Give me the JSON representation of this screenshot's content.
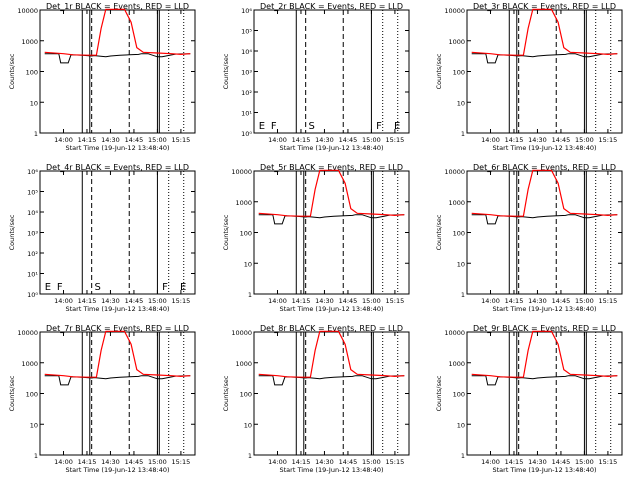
{
  "chart_data": [
    {
      "type": "line",
      "title": "Det_1r BLACK = Events, RED = LLD",
      "ylabel": "Counts/sec",
      "xlabel": "Start Time (19-Jun-12 13:48:40)",
      "xticks": [
        "14:00",
        "14:15",
        "14:30",
        "14:45",
        "15:00",
        "15:15"
      ],
      "yscale": "log",
      "ylim": [
        1,
        10000
      ],
      "yticks": [
        "1",
        "10",
        "100",
        "1000",
        "10000"
      ],
      "markers": [],
      "series": [
        {
          "color": "#000000",
          "x": [
            13.8,
            13.95,
            13.97,
            14.05,
            14.08,
            14.2,
            14.3,
            14.33,
            14.45,
            14.5,
            14.6,
            14.8,
            14.83,
            14.9,
            15.0,
            15.05,
            15.2,
            15.35
          ],
          "y": [
            380,
            380,
            190,
            190,
            350,
            340,
            320,
            330,
            300,
            320,
            340,
            360,
            380,
            380,
            300,
            300,
            370,
            380
          ]
        },
        {
          "color": "#ff0000",
          "x": [
            13.8,
            14.0,
            14.1,
            14.25,
            14.35,
            14.4,
            14.45,
            14.55,
            14.65,
            14.72,
            14.78,
            14.85,
            15.0,
            15.15,
            15.25,
            15.35
          ],
          "y": [
            420,
            380,
            350,
            340,
            340,
            2500,
            10500,
            10500,
            10500,
            4000,
            600,
            420,
            400,
            380,
            360,
            380
          ]
        }
      ],
      "vlines": [
        {
          "x": 14.2,
          "style": "solid"
        },
        {
          "x": 14.28,
          "style": "solid"
        },
        {
          "x": 14.3,
          "style": "dashed"
        },
        {
          "x": 14.7,
          "style": "dashed"
        },
        {
          "x": 15.0,
          "style": "solid"
        },
        {
          "x": 15.02,
          "style": "solid"
        },
        {
          "x": 15.12,
          "style": "dotted"
        },
        {
          "x": 15.28,
          "style": "dotted"
        }
      ]
    },
    {
      "type": "line",
      "title": "Det_2r BLACK = Events, RED = LLD",
      "ylabel": "Counts/sec",
      "xlabel": "Start Time (19-Jun-12 13:48:40)",
      "xticks": [
        "14:00",
        "14:15",
        "14:30",
        "14:45",
        "15:00",
        "15:15"
      ],
      "yscale": "log",
      "ylim": [
        1,
        1000000
      ],
      "yticks": [
        "10⁰",
        "10¹",
        "10²",
        "10³",
        "10⁴",
        "10⁵",
        "10⁶"
      ],
      "markers": [
        "E",
        "F",
        "S",
        "F",
        "E"
      ],
      "series": [],
      "vlines": [
        {
          "x": 14.2,
          "style": "solid"
        },
        {
          "x": 14.3,
          "style": "dashed"
        },
        {
          "x": 14.7,
          "style": "dashed"
        },
        {
          "x": 15.0,
          "style": "solid"
        },
        {
          "x": 15.12,
          "style": "dotted"
        },
        {
          "x": 15.28,
          "style": "dotted"
        }
      ]
    },
    {
      "type": "line",
      "title": "Det_3r BLACK = Events, RED = LLD",
      "ylabel": "Counts/sec",
      "xlabel": "Start Time (19-Jun-12 13:48:40)",
      "xticks": [
        "14:00",
        "14:15",
        "14:30",
        "14:45",
        "15:00",
        "15:15"
      ],
      "yscale": "log",
      "ylim": [
        1,
        10000
      ],
      "yticks": [
        "1",
        "10",
        "100",
        "1000",
        "10000"
      ],
      "markers": [],
      "series": [
        {
          "color": "#000000",
          "x": [
            13.8,
            13.95,
            13.97,
            14.05,
            14.08,
            14.2,
            14.3,
            14.33,
            14.45,
            14.5,
            14.6,
            14.8,
            14.83,
            14.9,
            15.0,
            15.05,
            15.2,
            15.35
          ],
          "y": [
            380,
            380,
            190,
            190,
            350,
            340,
            320,
            330,
            300,
            320,
            340,
            360,
            380,
            380,
            300,
            300,
            370,
            380
          ]
        },
        {
          "color": "#ff0000",
          "x": [
            13.8,
            14.0,
            14.1,
            14.25,
            14.35,
            14.4,
            14.45,
            14.55,
            14.65,
            14.72,
            14.78,
            14.85,
            15.0,
            15.15,
            15.25,
            15.35
          ],
          "y": [
            420,
            380,
            350,
            340,
            340,
            2500,
            10500,
            10500,
            10500,
            4000,
            600,
            420,
            400,
            380,
            360,
            380
          ]
        }
      ],
      "vlines": [
        {
          "x": 14.2,
          "style": "solid"
        },
        {
          "x": 14.28,
          "style": "solid"
        },
        {
          "x": 14.3,
          "style": "dashed"
        },
        {
          "x": 14.7,
          "style": "dashed"
        },
        {
          "x": 15.0,
          "style": "solid"
        },
        {
          "x": 15.02,
          "style": "solid"
        },
        {
          "x": 15.12,
          "style": "dotted"
        },
        {
          "x": 15.28,
          "style": "dotted"
        }
      ]
    },
    {
      "type": "line",
      "title": "Det_4r BLACK = Events, RED = LLD",
      "ylabel": "Counts/sec",
      "xlabel": "Start Time (19-Jun-12 13:48:40)",
      "xticks": [
        "14:00",
        "14:15",
        "14:30",
        "14:45",
        "15:00",
        "15:15"
      ],
      "yscale": "log",
      "ylim": [
        1,
        1000000
      ],
      "yticks": [
        "10⁰",
        "10¹",
        "10²",
        "10³",
        "10⁴",
        "10⁵",
        "10⁶"
      ],
      "markers": [
        "E",
        "F",
        "S",
        "F",
        "E"
      ],
      "series": [],
      "vlines": [
        {
          "x": 14.2,
          "style": "solid"
        },
        {
          "x": 14.3,
          "style": "dashed"
        },
        {
          "x": 14.7,
          "style": "dashed"
        },
        {
          "x": 15.0,
          "style": "solid"
        },
        {
          "x": 15.12,
          "style": "dotted"
        },
        {
          "x": 15.28,
          "style": "dotted"
        }
      ]
    },
    {
      "type": "line",
      "title": "Det_5r BLACK = Events, RED = LLD",
      "ylabel": "Counts/sec",
      "xlabel": "Start Time (19-Jun-12 13:48:40)",
      "xticks": [
        "14:00",
        "14:15",
        "14:30",
        "14:45",
        "15:00",
        "15:15"
      ],
      "yscale": "log",
      "ylim": [
        1,
        10000
      ],
      "yticks": [
        "1",
        "10",
        "100",
        "1000",
        "10000"
      ],
      "markers": [],
      "series": [
        {
          "color": "#000000",
          "x": [
            13.8,
            13.95,
            13.97,
            14.05,
            14.08,
            14.2,
            14.3,
            14.33,
            14.45,
            14.5,
            14.6,
            14.8,
            14.83,
            14.9,
            15.0,
            15.05,
            15.2,
            15.35
          ],
          "y": [
            380,
            380,
            190,
            190,
            350,
            340,
            320,
            330,
            300,
            320,
            340,
            360,
            380,
            380,
            300,
            300,
            370,
            380
          ]
        },
        {
          "color": "#ff0000",
          "x": [
            13.8,
            14.0,
            14.1,
            14.25,
            14.35,
            14.4,
            14.45,
            14.55,
            14.65,
            14.72,
            14.78,
            14.85,
            15.0,
            15.15,
            15.25,
            15.35
          ],
          "y": [
            420,
            380,
            350,
            340,
            340,
            2500,
            10500,
            10500,
            10500,
            4000,
            600,
            420,
            400,
            380,
            360,
            380
          ]
        }
      ],
      "vlines": [
        {
          "x": 14.2,
          "style": "solid"
        },
        {
          "x": 14.28,
          "style": "solid"
        },
        {
          "x": 14.3,
          "style": "dashed"
        },
        {
          "x": 14.7,
          "style": "dashed"
        },
        {
          "x": 15.0,
          "style": "solid"
        },
        {
          "x": 15.02,
          "style": "solid"
        },
        {
          "x": 15.12,
          "style": "dotted"
        },
        {
          "x": 15.28,
          "style": "dotted"
        }
      ]
    },
    {
      "type": "line",
      "title": "Det_6r BLACK = Events, RED = LLD",
      "ylabel": "Counts/sec",
      "xlabel": "Start Time (19-Jun-12 13:48:40)",
      "xticks": [
        "14:00",
        "14:15",
        "14:30",
        "14:45",
        "15:00",
        "15:15"
      ],
      "yscale": "log",
      "ylim": [
        1,
        10000
      ],
      "yticks": [
        "1",
        "10",
        "100",
        "1000",
        "10000"
      ],
      "markers": [],
      "series": [
        {
          "color": "#000000",
          "x": [
            13.8,
            13.95,
            13.97,
            14.05,
            14.08,
            14.2,
            14.3,
            14.33,
            14.45,
            14.5,
            14.6,
            14.8,
            14.83,
            14.9,
            15.0,
            15.05,
            15.2,
            15.35
          ],
          "y": [
            380,
            380,
            190,
            190,
            350,
            340,
            320,
            330,
            300,
            320,
            340,
            360,
            380,
            380,
            300,
            300,
            370,
            380
          ]
        },
        {
          "color": "#ff0000",
          "x": [
            13.8,
            14.0,
            14.1,
            14.25,
            14.35,
            14.4,
            14.45,
            14.55,
            14.65,
            14.72,
            14.78,
            14.85,
            15.0,
            15.15,
            15.25,
            15.35
          ],
          "y": [
            420,
            380,
            350,
            340,
            340,
            2500,
            10500,
            10500,
            10500,
            4000,
            600,
            420,
            400,
            380,
            360,
            380
          ]
        }
      ],
      "vlines": [
        {
          "x": 14.2,
          "style": "solid"
        },
        {
          "x": 14.28,
          "style": "solid"
        },
        {
          "x": 14.3,
          "style": "dashed"
        },
        {
          "x": 14.7,
          "style": "dashed"
        },
        {
          "x": 15.0,
          "style": "solid"
        },
        {
          "x": 15.02,
          "style": "solid"
        },
        {
          "x": 15.12,
          "style": "dotted"
        },
        {
          "x": 15.28,
          "style": "dotted"
        }
      ]
    },
    {
      "type": "line",
      "title": "Det_7r BLACK = Events, RED = LLD",
      "ylabel": "Counts/sec",
      "xlabel": "Start Time (19-Jun-12 13:48:40)",
      "xticks": [
        "14:00",
        "14:15",
        "14:30",
        "14:45",
        "15:00",
        "15:15"
      ],
      "yscale": "log",
      "ylim": [
        1,
        10000
      ],
      "yticks": [
        "1",
        "10",
        "100",
        "1000",
        "10000"
      ],
      "markers": [],
      "series": [
        {
          "color": "#000000",
          "x": [
            13.8,
            13.95,
            13.97,
            14.05,
            14.08,
            14.2,
            14.3,
            14.33,
            14.45,
            14.5,
            14.6,
            14.8,
            14.83,
            14.9,
            15.0,
            15.05,
            15.2,
            15.35
          ],
          "y": [
            380,
            380,
            190,
            190,
            350,
            340,
            320,
            330,
            300,
            320,
            340,
            360,
            380,
            380,
            300,
            300,
            370,
            380
          ]
        },
        {
          "color": "#ff0000",
          "x": [
            13.8,
            14.0,
            14.1,
            14.25,
            14.35,
            14.4,
            14.45,
            14.55,
            14.65,
            14.72,
            14.78,
            14.85,
            15.0,
            15.15,
            15.25,
            15.35
          ],
          "y": [
            420,
            380,
            350,
            340,
            340,
            2500,
            10500,
            10500,
            10500,
            4000,
            600,
            420,
            400,
            380,
            360,
            380
          ]
        }
      ],
      "vlines": [
        {
          "x": 14.2,
          "style": "solid"
        },
        {
          "x": 14.28,
          "style": "solid"
        },
        {
          "x": 14.3,
          "style": "dashed"
        },
        {
          "x": 14.7,
          "style": "dashed"
        },
        {
          "x": 15.0,
          "style": "solid"
        },
        {
          "x": 15.02,
          "style": "solid"
        },
        {
          "x": 15.12,
          "style": "dotted"
        },
        {
          "x": 15.28,
          "style": "dotted"
        }
      ]
    },
    {
      "type": "line",
      "title": "Det_8r BLACK = Events, RED = LLD",
      "ylabel": "Counts/sec",
      "xlabel": "Start Time (19-Jun-12 13:48:40)",
      "xticks": [
        "14:00",
        "14:15",
        "14:30",
        "14:45",
        "15:00",
        "15:15"
      ],
      "yscale": "log",
      "ylim": [
        1,
        10000
      ],
      "yticks": [
        "1",
        "10",
        "100",
        "1000",
        "10000"
      ],
      "markers": [],
      "series": [
        {
          "color": "#000000",
          "x": [
            13.8,
            13.95,
            13.97,
            14.05,
            14.08,
            14.2,
            14.3,
            14.33,
            14.45,
            14.5,
            14.6,
            14.8,
            14.83,
            14.9,
            15.0,
            15.05,
            15.2,
            15.35
          ],
          "y": [
            380,
            380,
            190,
            190,
            350,
            340,
            320,
            330,
            300,
            320,
            340,
            360,
            380,
            380,
            300,
            300,
            370,
            380
          ]
        },
        {
          "color": "#ff0000",
          "x": [
            13.8,
            14.0,
            14.1,
            14.25,
            14.35,
            14.4,
            14.45,
            14.55,
            14.65,
            14.72,
            14.78,
            14.85,
            15.0,
            15.15,
            15.25,
            15.35
          ],
          "y": [
            420,
            380,
            350,
            340,
            340,
            2500,
            10500,
            10500,
            10500,
            4000,
            600,
            420,
            400,
            380,
            360,
            380
          ]
        }
      ],
      "vlines": [
        {
          "x": 14.2,
          "style": "solid"
        },
        {
          "x": 14.28,
          "style": "solid"
        },
        {
          "x": 14.3,
          "style": "dashed"
        },
        {
          "x": 14.7,
          "style": "dashed"
        },
        {
          "x": 15.0,
          "style": "solid"
        },
        {
          "x": 15.02,
          "style": "solid"
        },
        {
          "x": 15.12,
          "style": "dotted"
        },
        {
          "x": 15.28,
          "style": "dotted"
        }
      ]
    },
    {
      "type": "line",
      "title": "Det_9r BLACK = Events, RED = LLD",
      "ylabel": "Counts/sec",
      "xlabel": "Start Time (19-Jun-12 13:48:40)",
      "xticks": [
        "14:00",
        "14:15",
        "14:30",
        "14:45",
        "15:00",
        "15:15"
      ],
      "yscale": "log",
      "ylim": [
        1,
        10000
      ],
      "yticks": [
        "1",
        "10",
        "100",
        "1000",
        "10000"
      ],
      "markers": [],
      "series": [
        {
          "color": "#000000",
          "x": [
            13.8,
            13.95,
            13.97,
            14.05,
            14.08,
            14.2,
            14.3,
            14.33,
            14.45,
            14.5,
            14.6,
            14.8,
            14.83,
            14.9,
            15.0,
            15.05,
            15.2,
            15.35
          ],
          "y": [
            380,
            380,
            190,
            190,
            350,
            340,
            320,
            330,
            300,
            320,
            340,
            360,
            380,
            380,
            300,
            300,
            370,
            380
          ]
        },
        {
          "color": "#ff0000",
          "x": [
            13.8,
            14.0,
            14.1,
            14.25,
            14.35,
            14.4,
            14.45,
            14.55,
            14.65,
            14.72,
            14.78,
            14.85,
            15.0,
            15.15,
            15.25,
            15.35
          ],
          "y": [
            420,
            380,
            350,
            340,
            340,
            2500,
            10500,
            10500,
            10500,
            4000,
            600,
            420,
            400,
            380,
            360,
            380
          ]
        }
      ],
      "vlines": [
        {
          "x": 14.2,
          "style": "solid"
        },
        {
          "x": 14.28,
          "style": "solid"
        },
        {
          "x": 14.3,
          "style": "dashed"
        },
        {
          "x": 14.7,
          "style": "dashed"
        },
        {
          "x": 15.0,
          "style": "solid"
        },
        {
          "x": 15.02,
          "style": "solid"
        },
        {
          "x": 15.12,
          "style": "dotted"
        },
        {
          "x": 15.28,
          "style": "dotted"
        }
      ]
    }
  ]
}
